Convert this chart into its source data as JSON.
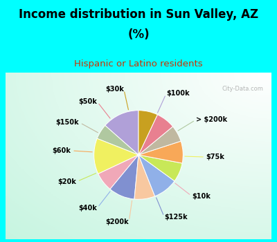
{
  "title_line1": "Income distribution in Sun Valley, AZ",
  "title_line2": "(%)",
  "subtitle": "Hispanic or Latino residents",
  "bg_cyan": "#00FFFF",
  "bg_chart_color": "#c8f0e0",
  "labels": [
    "$100k",
    "> $200k",
    "$75k",
    "$10k",
    "$125k",
    "$200k",
    "$40k",
    "$20k",
    "$60k",
    "$150k",
    "$50k",
    "$30k"
  ],
  "values": [
    13.5,
    5.5,
    13.0,
    7.0,
    9.5,
    7.5,
    9.0,
    7.0,
    8.0,
    6.0,
    7.0,
    7.0
  ],
  "colors": [
    "#b0a0d8",
    "#b0c8a0",
    "#f0f060",
    "#f0a8b8",
    "#8090d0",
    "#f8c8a0",
    "#90b0e8",
    "#c8e858",
    "#f8a858",
    "#c0b8a0",
    "#e88090",
    "#c8a020"
  ],
  "watermark": "City-Data.com",
  "title_fontsize": 12,
  "subtitle_fontsize": 9.5,
  "label_fontsize": 7
}
